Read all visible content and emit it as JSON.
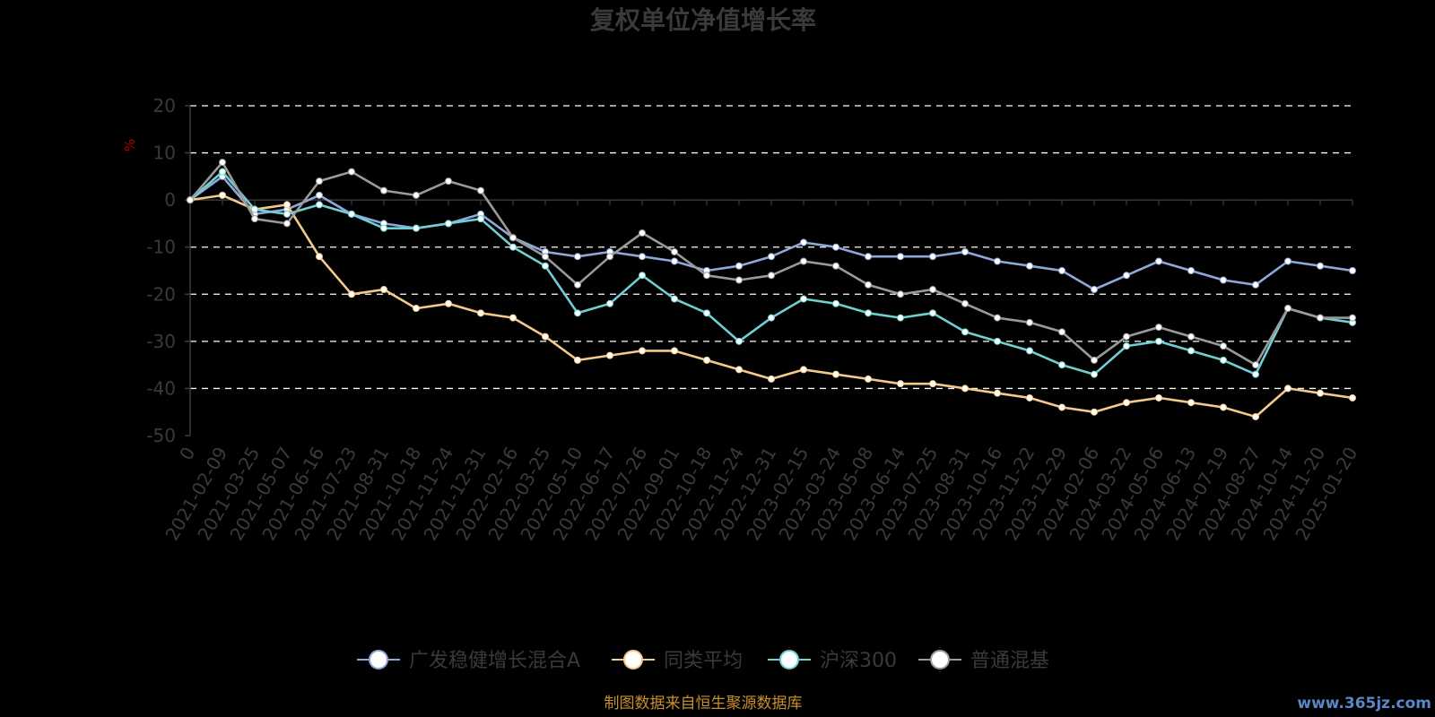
{
  "footer": "制图数据来自恒生聚源数据库",
  "watermark": "www.365jz.com",
  "chart_data": {
    "type": "line",
    "title": "复权单位净值增长率",
    "ylabel": "%",
    "ylim": [
      -50,
      20
    ],
    "yticks": [
      20,
      10,
      0,
      -10,
      -20,
      -30,
      -40,
      -50
    ],
    "grid": true,
    "legend_position": "bottom",
    "xtick_labels": [
      "0",
      "2021-02-09",
      "2021-03-25",
      "2021-05-07",
      "2021-06-16",
      "2021-07-23",
      "2021-08-31",
      "2021-10-18",
      "2021-11-24",
      "2021-12-31",
      "2022-02-16",
      "2022-03-25",
      "2022-05-10",
      "2022-06-17",
      "2022-07-26",
      "2022-09-01",
      "2022-10-18",
      "2022-11-24",
      "2022-12-31",
      "2023-02-15",
      "2023-03-24",
      "2023-05-08",
      "2023-06-14",
      "2023-07-25",
      "2023-08-31",
      "2023-10-16",
      "2023-11-22",
      "2023-12-29",
      "2024-02-06",
      "2024-03-22",
      "2024-05-06",
      "2024-06-13",
      "2024-07-19",
      "2024-08-27",
      "2024-10-14",
      "2024-11-20",
      "2025-01-20"
    ],
    "x": [
      "0",
      "2021-02-09",
      "2021-03-25",
      "2021-05-07",
      "2021-06-16",
      "2021-07-23",
      "2021-08-31",
      "2021-10-18",
      "2021-11-24",
      "2021-12-31",
      "2022-02-16",
      "2022-03-25",
      "2022-05-10",
      "2022-06-17",
      "2022-07-26",
      "2022-09-01",
      "2022-10-18",
      "2022-11-24",
      "2022-12-31",
      "2023-02-15",
      "2023-03-24",
      "2023-05-08",
      "2023-06-14",
      "2023-07-25",
      "2023-08-31",
      "2023-10-16",
      "2023-11-22",
      "2023-12-29",
      "2024-02-06",
      "2024-03-22",
      "2024-05-06",
      "2024-06-13",
      "2024-07-19",
      "2024-08-27",
      "2024-10-14",
      "2024-11-20",
      "2025-01-20"
    ],
    "series": [
      {
        "name": "广发稳健增长混合A",
        "color": "#8fa8dc",
        "values": [
          0,
          5,
          -3,
          -2,
          1,
          -3,
          -5,
          -6,
          -5,
          -3,
          -8,
          -11,
          -12,
          -11,
          -12,
          -13,
          -15,
          -14,
          -12,
          -9,
          -10,
          -12,
          -12,
          -12,
          -11,
          -13,
          -14,
          -15,
          -19,
          -16,
          -13,
          -15,
          -17,
          -18,
          -13,
          -14,
          -15
        ]
      },
      {
        "name": "同类平均",
        "color": "#f5c98a",
        "values": [
          0,
          1,
          -2,
          -1,
          -12,
          -20,
          -19,
          -23,
          -22,
          -24,
          -25,
          -29,
          -34,
          -33,
          -32,
          -32,
          -34,
          -36,
          -38,
          -36,
          -37,
          -38,
          -39,
          -39,
          -40,
          -41,
          -42,
          -44,
          -45,
          -43,
          -42,
          -43,
          -44,
          -46,
          -40,
          -41,
          -42
        ]
      },
      {
        "name": "沪深300",
        "color": "#6fcfd2",
        "values": [
          0,
          6,
          -2,
          -3,
          -1,
          -3,
          -6,
          -6,
          -5,
          -4,
          -10,
          -14,
          -24,
          -22,
          -16,
          -21,
          -24,
          -30,
          -25,
          -21,
          -22,
          -24,
          -25,
          -24,
          -28,
          -30,
          -32,
          -35,
          -37,
          -31,
          -30,
          -32,
          -34,
          -37,
          -23,
          -25,
          -26
        ]
      },
      {
        "name": "普通混基",
        "color": "#9a9a9a",
        "values": [
          0,
          8,
          -4,
          -5,
          4,
          6,
          2,
          1,
          4,
          2,
          -8,
          -12,
          -18,
          -12,
          -7,
          -11,
          -16,
          -17,
          -16,
          -13,
          -14,
          -18,
          -20,
          -19,
          -22,
          -25,
          -26,
          -28,
          -34,
          -29,
          -27,
          -29,
          -31,
          -35,
          -23,
          -25,
          -25
        ]
      }
    ]
  }
}
